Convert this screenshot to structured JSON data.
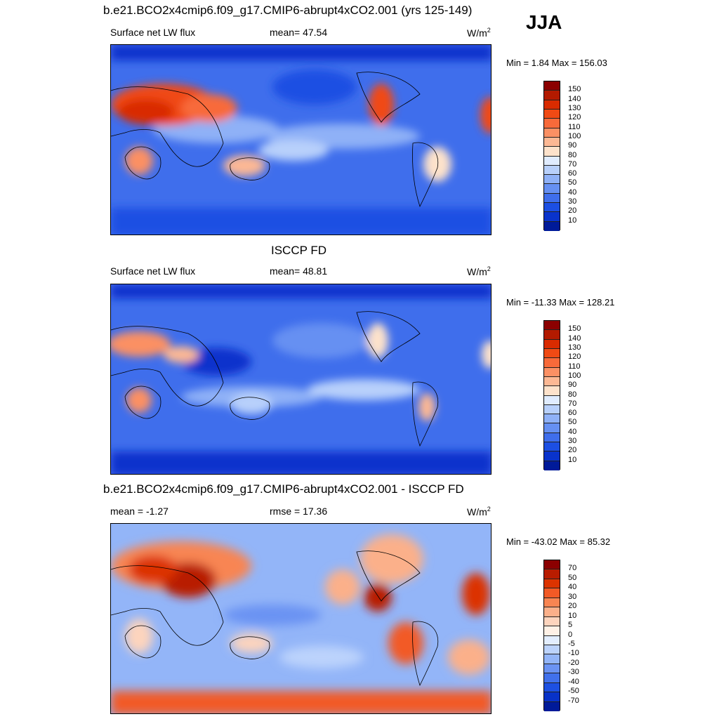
{
  "season": "JJA",
  "panels": [
    {
      "title": "b.e21.BCO2x4cmip6.f09_g17.CMIP6-abrupt4xCO2.001 (yrs 125-149)",
      "left_label": "Surface net LW flux",
      "mid_label": "mean=  47.54",
      "units": "W/m",
      "units_sup": "2",
      "minmax": "Min =   1.84 Max = 156.03",
      "colorbar_labels": [
        "150",
        "140",
        "130",
        "120",
        "110",
        "100",
        "90",
        "80",
        "70",
        "60",
        "50",
        "40",
        "30",
        "20",
        "10"
      ],
      "colorbar_colors": [
        "#8b0000",
        "#b31a00",
        "#d92b00",
        "#f04a14",
        "#f86a3a",
        "#fb9064",
        "#fcb894",
        "#fde2cb",
        "#e0ecff",
        "#b8d0fb",
        "#8fb1f7",
        "#6690f2",
        "#3f6eec",
        "#1c4fe3",
        "#0933cc",
        "#001a99"
      ]
    },
    {
      "title": "ISCCP FD",
      "left_label": "Surface net LW flux",
      "mid_label": "mean=  48.81",
      "units": "W/m",
      "units_sup": "2",
      "minmax": "Min = -11.33 Max = 128.21",
      "colorbar_labels": [
        "150",
        "140",
        "130",
        "120",
        "110",
        "100",
        "90",
        "80",
        "70",
        "60",
        "50",
        "40",
        "30",
        "20",
        "10"
      ],
      "colorbar_colors": [
        "#8b0000",
        "#b31a00",
        "#d92b00",
        "#f04a14",
        "#f86a3a",
        "#fb9064",
        "#fcb894",
        "#fde2cb",
        "#e0ecff",
        "#b8d0fb",
        "#8fb1f7",
        "#6690f2",
        "#3f6eec",
        "#1c4fe3",
        "#0933cc",
        "#001a99"
      ]
    },
    {
      "title": "b.e21.BCO2x4cmip6.f09_g17.CMIP6-abrupt4xCO2.001 - ISCCP FD",
      "left_label": "mean =  -1.27",
      "mid_label": "rmse =  17.36",
      "units": "W/m",
      "units_sup": "2",
      "minmax": "Min = -43.02 Max =  85.32",
      "colorbar_labels": [
        "70",
        "50",
        "40",
        "30",
        "20",
        "10",
        "5",
        "0",
        "-5",
        "-10",
        "-20",
        "-30",
        "-40",
        "-50",
        "-70"
      ],
      "colorbar_colors": [
        "#8b0000",
        "#b81c00",
        "#dc3300",
        "#f25a26",
        "#f88552",
        "#fbb08a",
        "#fdd4bd",
        "#fff1e6",
        "#e3eeff",
        "#bcd3fc",
        "#93b5f8",
        "#6b93f3",
        "#4171ec",
        "#1d50e2",
        "#0832c8",
        "#001a99"
      ]
    }
  ]
}
